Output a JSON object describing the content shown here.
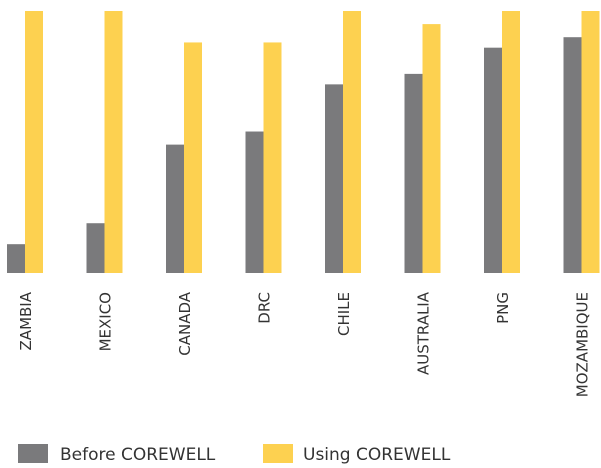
{
  "chart_data": {
    "type": "bar",
    "categories": [
      "ZAMBIA",
      "MEXICO",
      "CANADA",
      "DRC",
      "CHILE",
      "AUSTRALIA",
      "PNG",
      "MOZAMBIQUE"
    ],
    "series": [
      {
        "name": "Before COREWELL",
        "color": "#7a7a7c",
        "values": [
          11,
          19,
          49,
          54,
          72,
          76,
          86,
          90
        ]
      },
      {
        "name": "Using COREWELL",
        "color": "#fdd150",
        "values": [
          100,
          100,
          88,
          88,
          100,
          95,
          100,
          100
        ]
      }
    ],
    "ylim": [
      0,
      100
    ],
    "grid": false,
    "legend": "bottom-left",
    "title": "",
    "xlabel": "",
    "ylabel": ""
  }
}
